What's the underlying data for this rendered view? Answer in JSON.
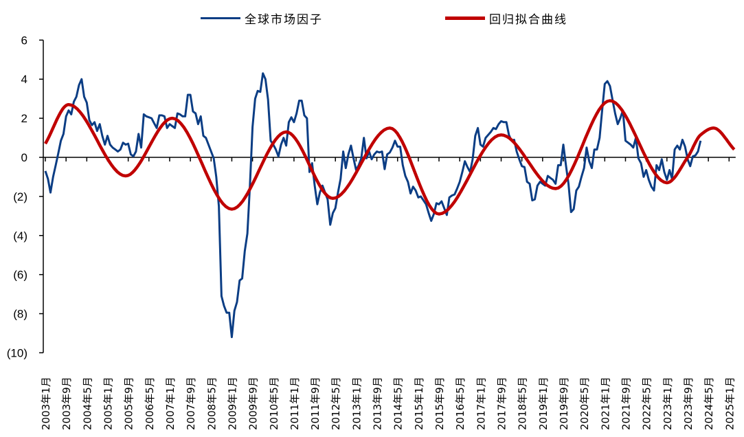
{
  "chart_data": {
    "type": "line",
    "title": "",
    "xlabel": "",
    "ylabel": "",
    "ylim": [
      -10,
      6
    ],
    "y_ticks": [
      6,
      4,
      2,
      0,
      -2,
      -4,
      -6,
      -8,
      -10
    ],
    "y_tick_labels": [
      "6",
      "4",
      "2",
      "0",
      "(2)",
      "(4)",
      "(6)",
      "(8)",
      "(10)"
    ],
    "x_range": [
      "2003-01",
      "2025-03"
    ],
    "x_tick_labels": [
      "2003年1月",
      "2003年9月",
      "2004年5月",
      "2005年1月",
      "2005年9月",
      "2006年5月",
      "2007年1月",
      "2007年9月",
      "2008年5月",
      "2009年1月",
      "2009年9月",
      "2010年5月",
      "2011年1月",
      "2011年9月",
      "2012年5月",
      "2013年1月",
      "2013年9月",
      "2014年5月",
      "2015年1月",
      "2015年9月",
      "2016年5月",
      "2017年1月",
      "2017年9月",
      "2018年5月",
      "2019年1月",
      "2019年9月",
      "2020年5月",
      "2021年1月",
      "2021年9月",
      "2022年5月",
      "2023年1月",
      "2023年9月",
      "2024年5月",
      "2025年1月"
    ],
    "grid": false,
    "legend_position": "top",
    "series": [
      {
        "name": "全球市场因子",
        "color": "#0b3d84",
        "frequency": "monthly",
        "start": "2003-01",
        "values": [
          -0.7,
          -1.1,
          -1.8,
          -1.0,
          -0.4,
          0.2,
          0.85,
          1.2,
          2.1,
          2.4,
          2.2,
          2.85,
          3.1,
          3.7,
          4.0,
          3.1,
          2.8,
          1.9,
          1.65,
          1.8,
          1.35,
          1.7,
          1.1,
          0.65,
          1.1,
          0.65,
          0.5,
          0.4,
          0.3,
          0.4,
          0.75,
          0.65,
          0.7,
          0.15,
          0.05,
          0.3,
          1.2,
          0.5,
          2.2,
          2.1,
          2.05,
          2.0,
          1.75,
          1.5,
          2.15,
          2.15,
          2.1,
          1.5,
          1.7,
          1.6,
          1.5,
          2.25,
          2.2,
          2.1,
          2.1,
          3.2,
          3.2,
          2.35,
          2.25,
          1.7,
          2.1,
          1.1,
          1.0,
          0.65,
          0.3,
          -0.05,
          -1.0,
          -2.5,
          -7.1,
          -7.6,
          -7.95,
          -7.95,
          -9.2,
          -7.85,
          -7.4,
          -6.3,
          -6.2,
          -4.8,
          -3.9,
          -1.45,
          1.55,
          3.0,
          3.4,
          3.35,
          4.3,
          4.0,
          2.95,
          0.85,
          0.65,
          0.4,
          0.05,
          0.65,
          1.0,
          0.6,
          1.8,
          2.05,
          1.8,
          2.25,
          2.9,
          2.9,
          2.15,
          2.0,
          -0.75,
          -0.3,
          -1.45,
          -2.4,
          -1.8,
          -1.45,
          -1.8,
          -2.15,
          -3.45,
          -2.85,
          -2.6,
          -1.8,
          -1.1,
          0.3,
          -0.55,
          0.15,
          0.6,
          -0.05,
          -0.65,
          -0.4,
          -0.05,
          1.0,
          -0.05,
          0.3,
          -0.1,
          0.15,
          0.3,
          0.25,
          0.3,
          -0.6,
          0.15,
          0.25,
          0.5,
          0.85,
          0.55,
          0.55,
          -0.4,
          -0.95,
          -1.25,
          -1.85,
          -1.5,
          -1.7,
          -2.05,
          -2.0,
          -2.2,
          -2.4,
          -2.85,
          -3.25,
          -2.9,
          -2.35,
          -2.4,
          -2.25,
          -2.6,
          -2.95,
          -2.05,
          -1.95,
          -1.9,
          -1.6,
          -1.25,
          -0.75,
          -0.2,
          -0.5,
          -0.75,
          -0.1,
          1.1,
          1.5,
          0.65,
          0.55,
          1.0,
          1.15,
          1.3,
          1.5,
          1.45,
          1.7,
          1.85,
          1.8,
          1.8,
          1.15,
          0.85,
          0.9,
          0.3,
          -0.1,
          -0.45,
          -0.5,
          -1.25,
          -1.35,
          -2.2,
          -2.15,
          -1.45,
          -1.25,
          -1.35,
          -1.45,
          -0.95,
          -1.05,
          -1.15,
          -1.35,
          -0.4,
          -0.4,
          0.65,
          -0.4,
          -1.35,
          -2.8,
          -2.65,
          -1.7,
          -1.5,
          -1.0,
          -0.55,
          0.5,
          -0.2,
          -0.55,
          0.4,
          0.4,
          1.0,
          2.4,
          3.75,
          3.9,
          3.65,
          2.95,
          2.25,
          1.7,
          2.0,
          2.4,
          0.85,
          0.75,
          0.65,
          0.5,
          1.0,
          -0.05,
          -0.3,
          -1.0,
          -0.65,
          -1.15,
          -1.5,
          -1.7,
          -0.4,
          -0.65,
          -0.1,
          -0.75,
          -1.15,
          -0.65,
          -1.1,
          0.4,
          0.6,
          0.4,
          0.9,
          0.55,
          -0.1,
          -0.45,
          0.05,
          0.1,
          0.3,
          0.85
        ]
      },
      {
        "name": "回归拟合曲线",
        "color": "#c00000",
        "points": [
          [
            "2003-01",
            0.7
          ],
          [
            "2003-10",
            2.7
          ],
          [
            "2005-08",
            -0.95
          ],
          [
            "2007-02",
            2.0
          ],
          [
            "2009-01",
            -2.65
          ],
          [
            "2010-10",
            1.3
          ],
          [
            "2012-04",
            -2.1
          ],
          [
            "2014-02",
            1.5
          ],
          [
            "2015-09",
            -2.9
          ],
          [
            "2017-09",
            1.15
          ],
          [
            "2019-06",
            -1.6
          ],
          [
            "2021-03",
            2.9
          ],
          [
            "2023-01",
            -1.3
          ],
          [
            "2023-09",
            0.0
          ],
          [
            "2024-02",
            1.15
          ],
          [
            "2024-07",
            1.5
          ],
          [
            "2025-03",
            0.4
          ]
        ]
      }
    ]
  }
}
